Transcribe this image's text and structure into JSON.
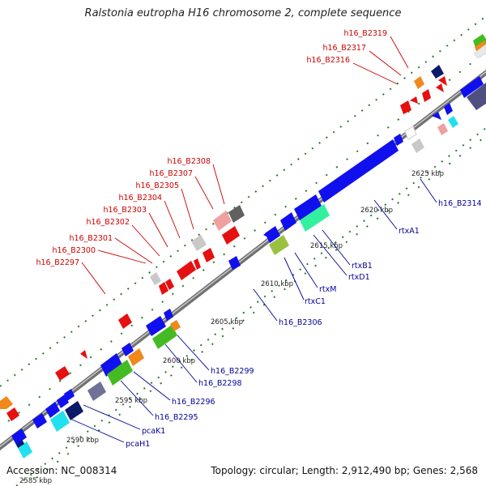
{
  "title": "Ralstonia eutropha H16 chromosome 2, complete sequence",
  "footer": {
    "accession": "Accession: NC_008314",
    "summary": "Topology: circular; Length: 2,912,490 bp; Genes: 2,568"
  },
  "colors": {
    "backbone": "#808080",
    "label_red": "#cc0000",
    "label_blue": "#000099",
    "tick": "#2a7a2a"
  },
  "scale_labels": [
    {
      "text": "2590 kbp",
      "pos": 0.5
    },
    {
      "text": "2595 kbp",
      "pos": 0.5
    },
    {
      "text": "2600 kbp",
      "pos": 0.5
    },
    {
      "text": "2605 kbp",
      "pos": 0.5
    },
    {
      "text": "2610 kbp",
      "pos": 0.5
    },
    {
      "text": "2615 kbp",
      "pos": 0.5
    },
    {
      "text": "2620 kbp",
      "pos": 0.5
    },
    {
      "text": "2625 kbp",
      "pos": 0.5
    },
    {
      "text": "2585 kbp",
      "pos": 0.5
    }
  ],
  "top_labels": [
    "h16_B2319",
    "h16_B2317",
    "h16_B2316",
    "h16_B2308",
    "h16_B2307",
    "h16_B2305",
    "h16_B2304",
    "h16_B2303",
    "h16_B2302",
    "h16_B2301",
    "h16_B2300",
    "h16_B2297"
  ],
  "bottom_labels": [
    "h16_B2314",
    "rtxA1",
    "rtxB1",
    "rtxD1",
    "rtxM",
    "rtxC1",
    "h16_B2306",
    "h16_B2299",
    "h16_B2298",
    "h16_B2296",
    "h16_B2295",
    "pcaK1",
    "pcaH1"
  ]
}
